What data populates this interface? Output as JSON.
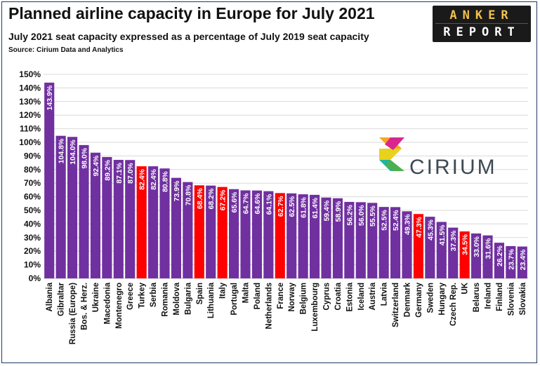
{
  "header": {
    "title": "Planned airline capacity in Europe for July 2021",
    "subtitle": "July 2021 seat capacity expressed as a percentage of July 2019 seat capacity",
    "source": "Source: Cirium Data and Analytics"
  },
  "logos": {
    "anker_line1": "ANKER",
    "anker_line2": "REPORT",
    "cirium": "CIRIUM"
  },
  "chart_data": {
    "type": "bar",
    "categories": [
      "Albania",
      "Gibraltar",
      "Russia (Europe)",
      "Bos. & Herz.",
      "Ukraine",
      "Macedonia",
      "Montenegro",
      "Greece",
      "Turkey",
      "Serbia",
      "Romania",
      "Moldova",
      "Bulgaria",
      "Spain",
      "Lithuania",
      "Italy",
      "Portugal",
      "Malta",
      "Poland",
      "Netherlands",
      "France",
      "Norway",
      "Belgium",
      "Luxembourg",
      "Cyprus",
      "Croatia",
      "Estonia",
      "Iceland",
      "Austria",
      "Latvia",
      "Switzerland",
      "Denmark",
      "Germany",
      "Sweden",
      "Hungary",
      "Czech Rep.",
      "UK",
      "Belarus",
      "Ireland",
      "Finland",
      "Slovenia",
      "Slovakia"
    ],
    "values": [
      143.9,
      104.8,
      104.0,
      98.0,
      92.4,
      89.2,
      87.1,
      87.0,
      82.4,
      82.4,
      80.8,
      73.9,
      70.8,
      68.4,
      68.2,
      67.2,
      65.6,
      64.7,
      64.6,
      64.1,
      62.7,
      62.5,
      61.8,
      61.4,
      59.4,
      58.9,
      56.2,
      56.0,
      55.5,
      52.5,
      52.4,
      49.3,
      47.3,
      45.3,
      41.5,
      37.3,
      34.5,
      33.0,
      31.6,
      26.2,
      23.7,
      23.4
    ],
    "labels": [
      "143.9%",
      "104.8%",
      "104.0%",
      "98.0%",
      "92.4%",
      "89.2%",
      "87.1%",
      "87.0%",
      "82.4%",
      "82.4%",
      "80.8%",
      "73.9%",
      "70.8%",
      "68.4%",
      "68.2%",
      "67.2%",
      "65.6%",
      "64.7%",
      "64.6%",
      "64.1%",
      "62.7%",
      "62.5%",
      "61.8%",
      "61.4%",
      "59.4%",
      "58.9%",
      "56.2%",
      "56.0%",
      "55.5%",
      "52.5%",
      "52.4%",
      "49.3%",
      "47.3%",
      "45.3%",
      "41.5%",
      "37.3%",
      "34.5%",
      "33.0%",
      "31.6%",
      "26.2%",
      "23.7%",
      "23.4%"
    ],
    "highlighted": [
      "Turkey",
      "Spain",
      "Italy",
      "France",
      "Germany",
      "UK"
    ],
    "ylim": [
      0,
      150
    ],
    "yticks": [
      0,
      10,
      20,
      30,
      40,
      50,
      60,
      70,
      80,
      90,
      100,
      110,
      120,
      130,
      140,
      150
    ],
    "ytick_labels": [
      "0%",
      "10%",
      "20%",
      "30%",
      "40%",
      "50%",
      "60%",
      "70%",
      "80%",
      "90%",
      "100%",
      "110%",
      "120%",
      "130%",
      "140%",
      "150%"
    ],
    "xlabel": "",
    "ylabel": "",
    "grid": true,
    "colors": {
      "bar": "#7030a0",
      "highlight": "#ff0000",
      "grid": "#d9d9d9",
      "label": "#ffffff"
    }
  }
}
